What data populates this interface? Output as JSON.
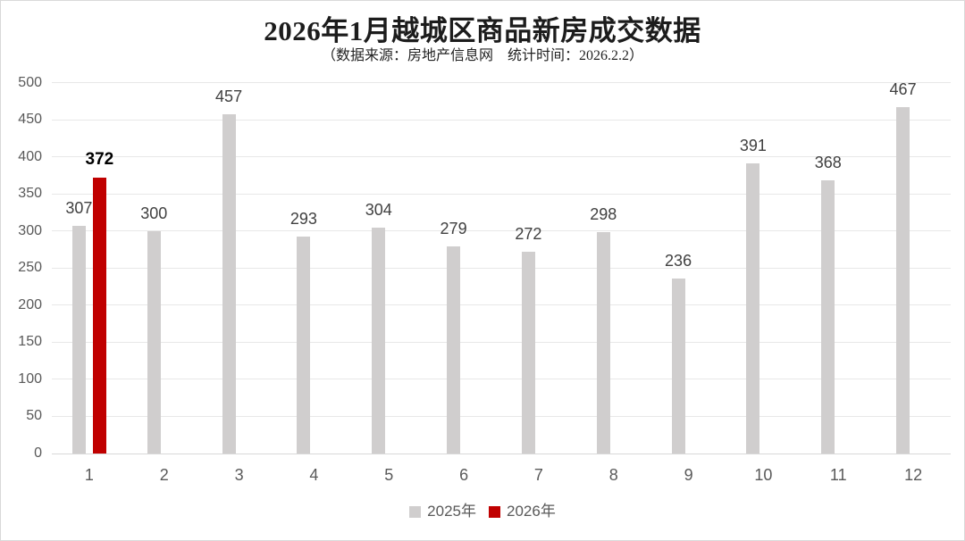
{
  "header": {
    "title": "2026年1月越城区商品新房成交数据",
    "subtitle": "（数据来源：房地产信息网　统计时间：2026.2.2）"
  },
  "chart_data": {
    "type": "bar",
    "title": "2026年1月越城区商品新房成交数据",
    "subtitle": "（数据来源：房地产信息网　统计时间：2026.2.2）",
    "categories": [
      "1",
      "2",
      "3",
      "4",
      "5",
      "6",
      "7",
      "8",
      "9",
      "10",
      "11",
      "12"
    ],
    "series": [
      {
        "name": "2025年",
        "color": "#D0CECE",
        "label_style": "normal",
        "values": [
          307,
          300,
          457,
          293,
          304,
          279,
          272,
          298,
          236,
          391,
          368,
          467
        ]
      },
      {
        "name": "2026年",
        "color": "#C00000",
        "label_style": "bold",
        "values": [
          372,
          null,
          null,
          null,
          null,
          null,
          null,
          null,
          null,
          null,
          null,
          null
        ]
      }
    ],
    "xlabel": "",
    "ylabel": "",
    "ylim": [
      0,
      500
    ],
    "yticks": [
      0,
      50,
      100,
      150,
      200,
      250,
      300,
      350,
      400,
      450,
      500
    ],
    "grid": true,
    "legend_position": "bottom",
    "colors": {
      "gridline": "#e8e8e8",
      "axis_line": "#d8d8d8",
      "tick_label": "#595959",
      "data_label": "#404040",
      "highlight_label": "#000000"
    }
  }
}
